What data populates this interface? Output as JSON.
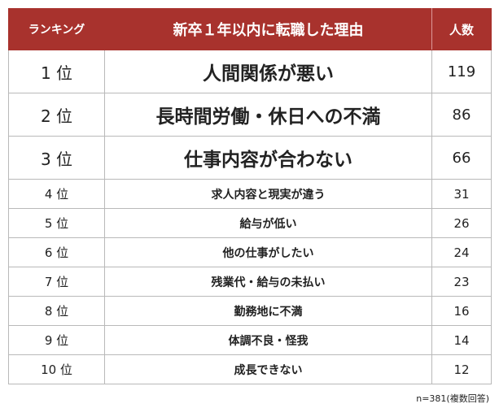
{
  "table": {
    "header": [
      "ランキング",
      "新卒１年以内に転職した理由",
      "人数"
    ],
    "rows": [
      [
        "1 位",
        "人間関係が悪い",
        119
      ],
      [
        "2 位",
        "長時間労働・休日への不満",
        86
      ],
      [
        "3 位",
        "仕事内容が合わない",
        66
      ],
      [
        "4 位",
        "求人内容と現実が違う",
        31
      ],
      [
        "5 位",
        "給与が低い",
        26
      ],
      [
        "6 位",
        "他の仕事がしたい",
        24
      ],
      [
        "7 位",
        "残業代・給与の未払い",
        23
      ],
      [
        "8 位",
        "勤務地に不満",
        16
      ],
      [
        "9 位",
        "体調不良・怪我",
        14
      ],
      [
        "10 位",
        "成長できない",
        12
      ]
    ]
  },
  "footnote": "n=381(複数回答)"
}
